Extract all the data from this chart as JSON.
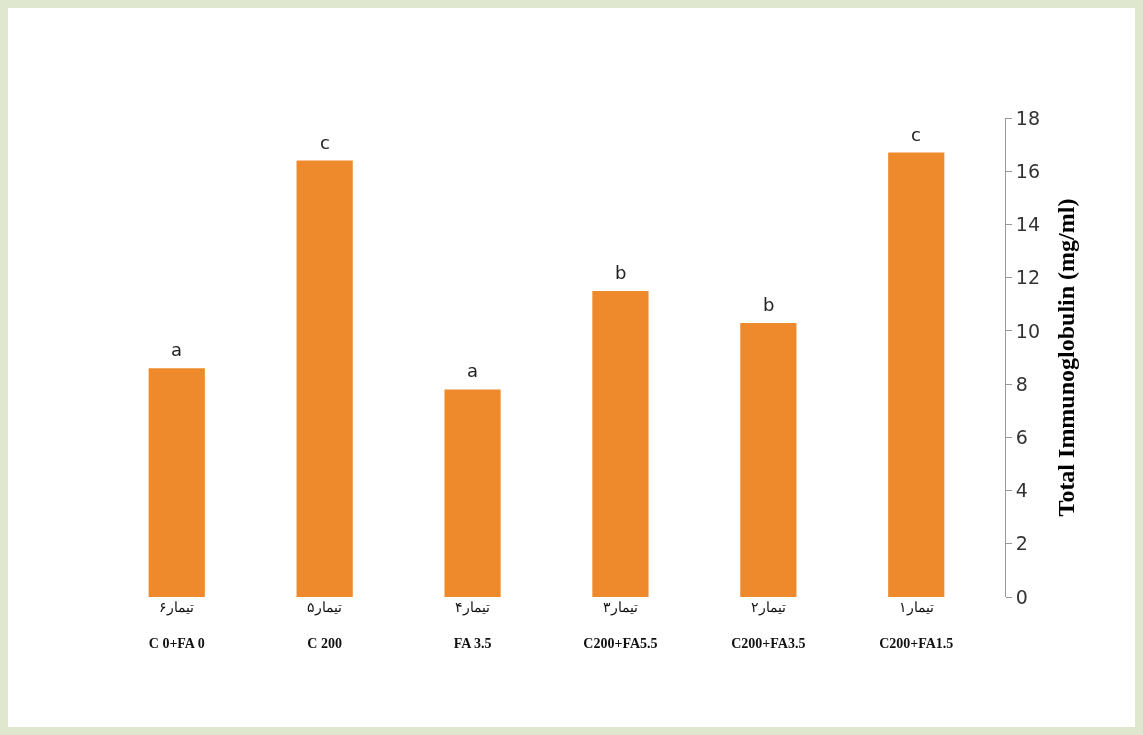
{
  "chart_data": {
    "type": "bar",
    "ylabel": "Total Immunoglobulin (mg/ml)",
    "categories": [
      "تیمار۶\nC 0+FA 0",
      "تیمار۵\nC 200",
      "تیمار۴\nFA 3.5",
      "تیمار۳\nC200+FA5.5",
      "تیمار۲\nC200+FA3.5",
      "تیمار۱\nC200+FA1.5"
    ],
    "values": [
      8.6,
      16.4,
      7.8,
      11.5,
      10.3,
      16.7
    ],
    "color": "#ee8a2c",
    "ylim": [
      0,
      18
    ],
    "yticks": [
      0,
      2,
      4,
      6,
      8,
      10,
      12,
      14,
      16,
      18
    ],
    "grid": false,
    "annotations": [
      {
        "text": "a",
        "x": "تیمار۶\nC 0+FA 0",
        "y": 8.6
      },
      {
        "text": "c",
        "x": "تیمار۵\nC 200",
        "y": 16.4
      },
      {
        "text": "a",
        "x": "تیمار۴\nFA 3.5",
        "y": 7.8
      },
      {
        "text": "b",
        "x": "تیمار۳\nC200+FA5.5",
        "y": 11.5
      },
      {
        "text": "b",
        "x": "تیمار۲\nC200+FA3.5",
        "y": 10.3
      },
      {
        "text": "c",
        "x": "تیمار۱\nC200+FA1.5",
        "y": 16.7
      }
    ]
  }
}
